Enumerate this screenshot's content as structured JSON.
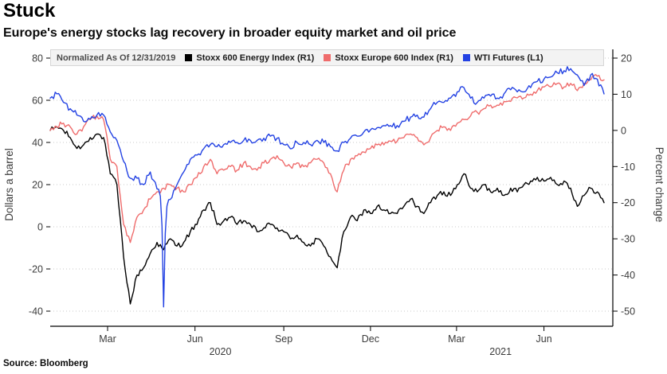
{
  "header": {
    "title": "Stuck",
    "subtitle": "Europe's energy stocks lag recovery in broader equity market and oil price"
  },
  "legend": {
    "note": "Normalized As Of 12/31/2019"
  },
  "footer": {
    "source": "Source:  Bloomberg"
  },
  "chart_data": {
    "type": "line",
    "grid_color": "#c9c9c9",
    "axis_color": "#000000",
    "x_unit": "weeks from 12/31/2019",
    "left_axis": {
      "label": "Dollars a barrel",
      "min": -40,
      "max": 80,
      "ticks": [
        80,
        60,
        40,
        20,
        0,
        -20,
        -40
      ]
    },
    "right_axis": {
      "label": "Percent change",
      "min": -50,
      "max": 20,
      "ticks": [
        20,
        10,
        0,
        -10,
        -20,
        -30,
        -40,
        -50
      ]
    },
    "x_ticks": [
      {
        "label": "Mar",
        "week": 8.6
      },
      {
        "label": "Jun",
        "week": 21.7
      },
      {
        "label": "Sep",
        "week": 35.0
      },
      {
        "label": "Dec",
        "week": 48.0
      },
      {
        "label": "Mar",
        "week": 60.9
      },
      {
        "label": "Jun",
        "week": 74.0
      }
    ],
    "year_labels": [
      {
        "label": "2020",
        "week": 25.5
      },
      {
        "label": "2021",
        "week": 67.5
      }
    ],
    "series": [
      {
        "id": "energy",
        "name": "Stoxx 600 Energy Index (R1)",
        "color": "#000000",
        "axis": "right",
        "values": [
          0,
          1,
          0,
          -2,
          -5,
          -4,
          -2,
          -1,
          -2,
          -12,
          -15,
          -35,
          -48,
          -40,
          -38,
          -34,
          -31,
          -33,
          -30,
          -32,
          -31,
          -28,
          -26,
          -22,
          -20,
          -26,
          -25,
          -24,
          -26,
          -25,
          -26,
          -28,
          -27,
          -26,
          -27,
          -28,
          -30,
          -29,
          -31,
          -32,
          -30,
          -32,
          -35,
          -38,
          -28,
          -24,
          -25,
          -22,
          -23,
          -21,
          -22,
          -23,
          -23,
          -21,
          -19,
          -21,
          -23,
          -20,
          -18,
          -17,
          -18,
          -15,
          -12,
          -16,
          -17,
          -15,
          -17,
          -16,
          -18,
          -16,
          -17,
          -15,
          -14,
          -13,
          -14,
          -13,
          -15,
          -14,
          -16,
          -21,
          -18,
          -16,
          -17,
          -20
        ]
      },
      {
        "id": "stoxx600",
        "name": "Stoxx Europe 600 Index (R1)",
        "color": "#ef6c6c",
        "axis": "right",
        "values": [
          0,
          1,
          2,
          1,
          -1,
          1,
          3,
          4,
          3,
          -8,
          -10,
          -26,
          -31,
          -24,
          -22,
          -19,
          -17,
          -16,
          -15,
          -16,
          -17,
          -15,
          -13,
          -10,
          -8,
          -12,
          -11,
          -10,
          -11,
          -9,
          -10,
          -11,
          -9,
          -8,
          -7,
          -9,
          -10,
          -9,
          -10,
          -9,
          -8,
          -9,
          -12,
          -17,
          -11,
          -8,
          -7,
          -6,
          -5,
          -4,
          -4,
          -3,
          -3,
          -2,
          -1,
          -2,
          -4,
          -2,
          0,
          1,
          0,
          2,
          3,
          4,
          5,
          6,
          7,
          7,
          8,
          8,
          9,
          9,
          10,
          11,
          12,
          12,
          13,
          12,
          13,
          11,
          13,
          14,
          15,
          14
        ]
      },
      {
        "id": "wti",
        "name": "WTI Futures (L1)",
        "color": "#2342e3",
        "axis": "left",
        "values": [
          61,
          63,
          59,
          56,
          53,
          50,
          51,
          53,
          53,
          45,
          41,
          31,
          23,
          23,
          20,
          26,
          18,
          -38,
          13,
          20,
          26,
          32,
          34,
          37,
          39,
          38,
          39,
          40,
          40,
          41,
          41,
          41,
          42,
          43,
          42,
          39,
          37,
          40,
          40,
          39,
          41,
          40,
          38,
          36,
          40,
          42,
          43,
          45,
          46,
          47,
          48,
          48,
          48,
          50,
          52,
          53,
          52,
          56,
          59,
          59,
          61,
          64,
          66,
          61,
          59,
          61,
          62,
          61,
          63,
          65,
          64,
          64,
          66,
          69,
          70,
          71,
          73,
          74,
          75,
          72,
          67,
          72,
          70,
          63
        ]
      }
    ]
  }
}
